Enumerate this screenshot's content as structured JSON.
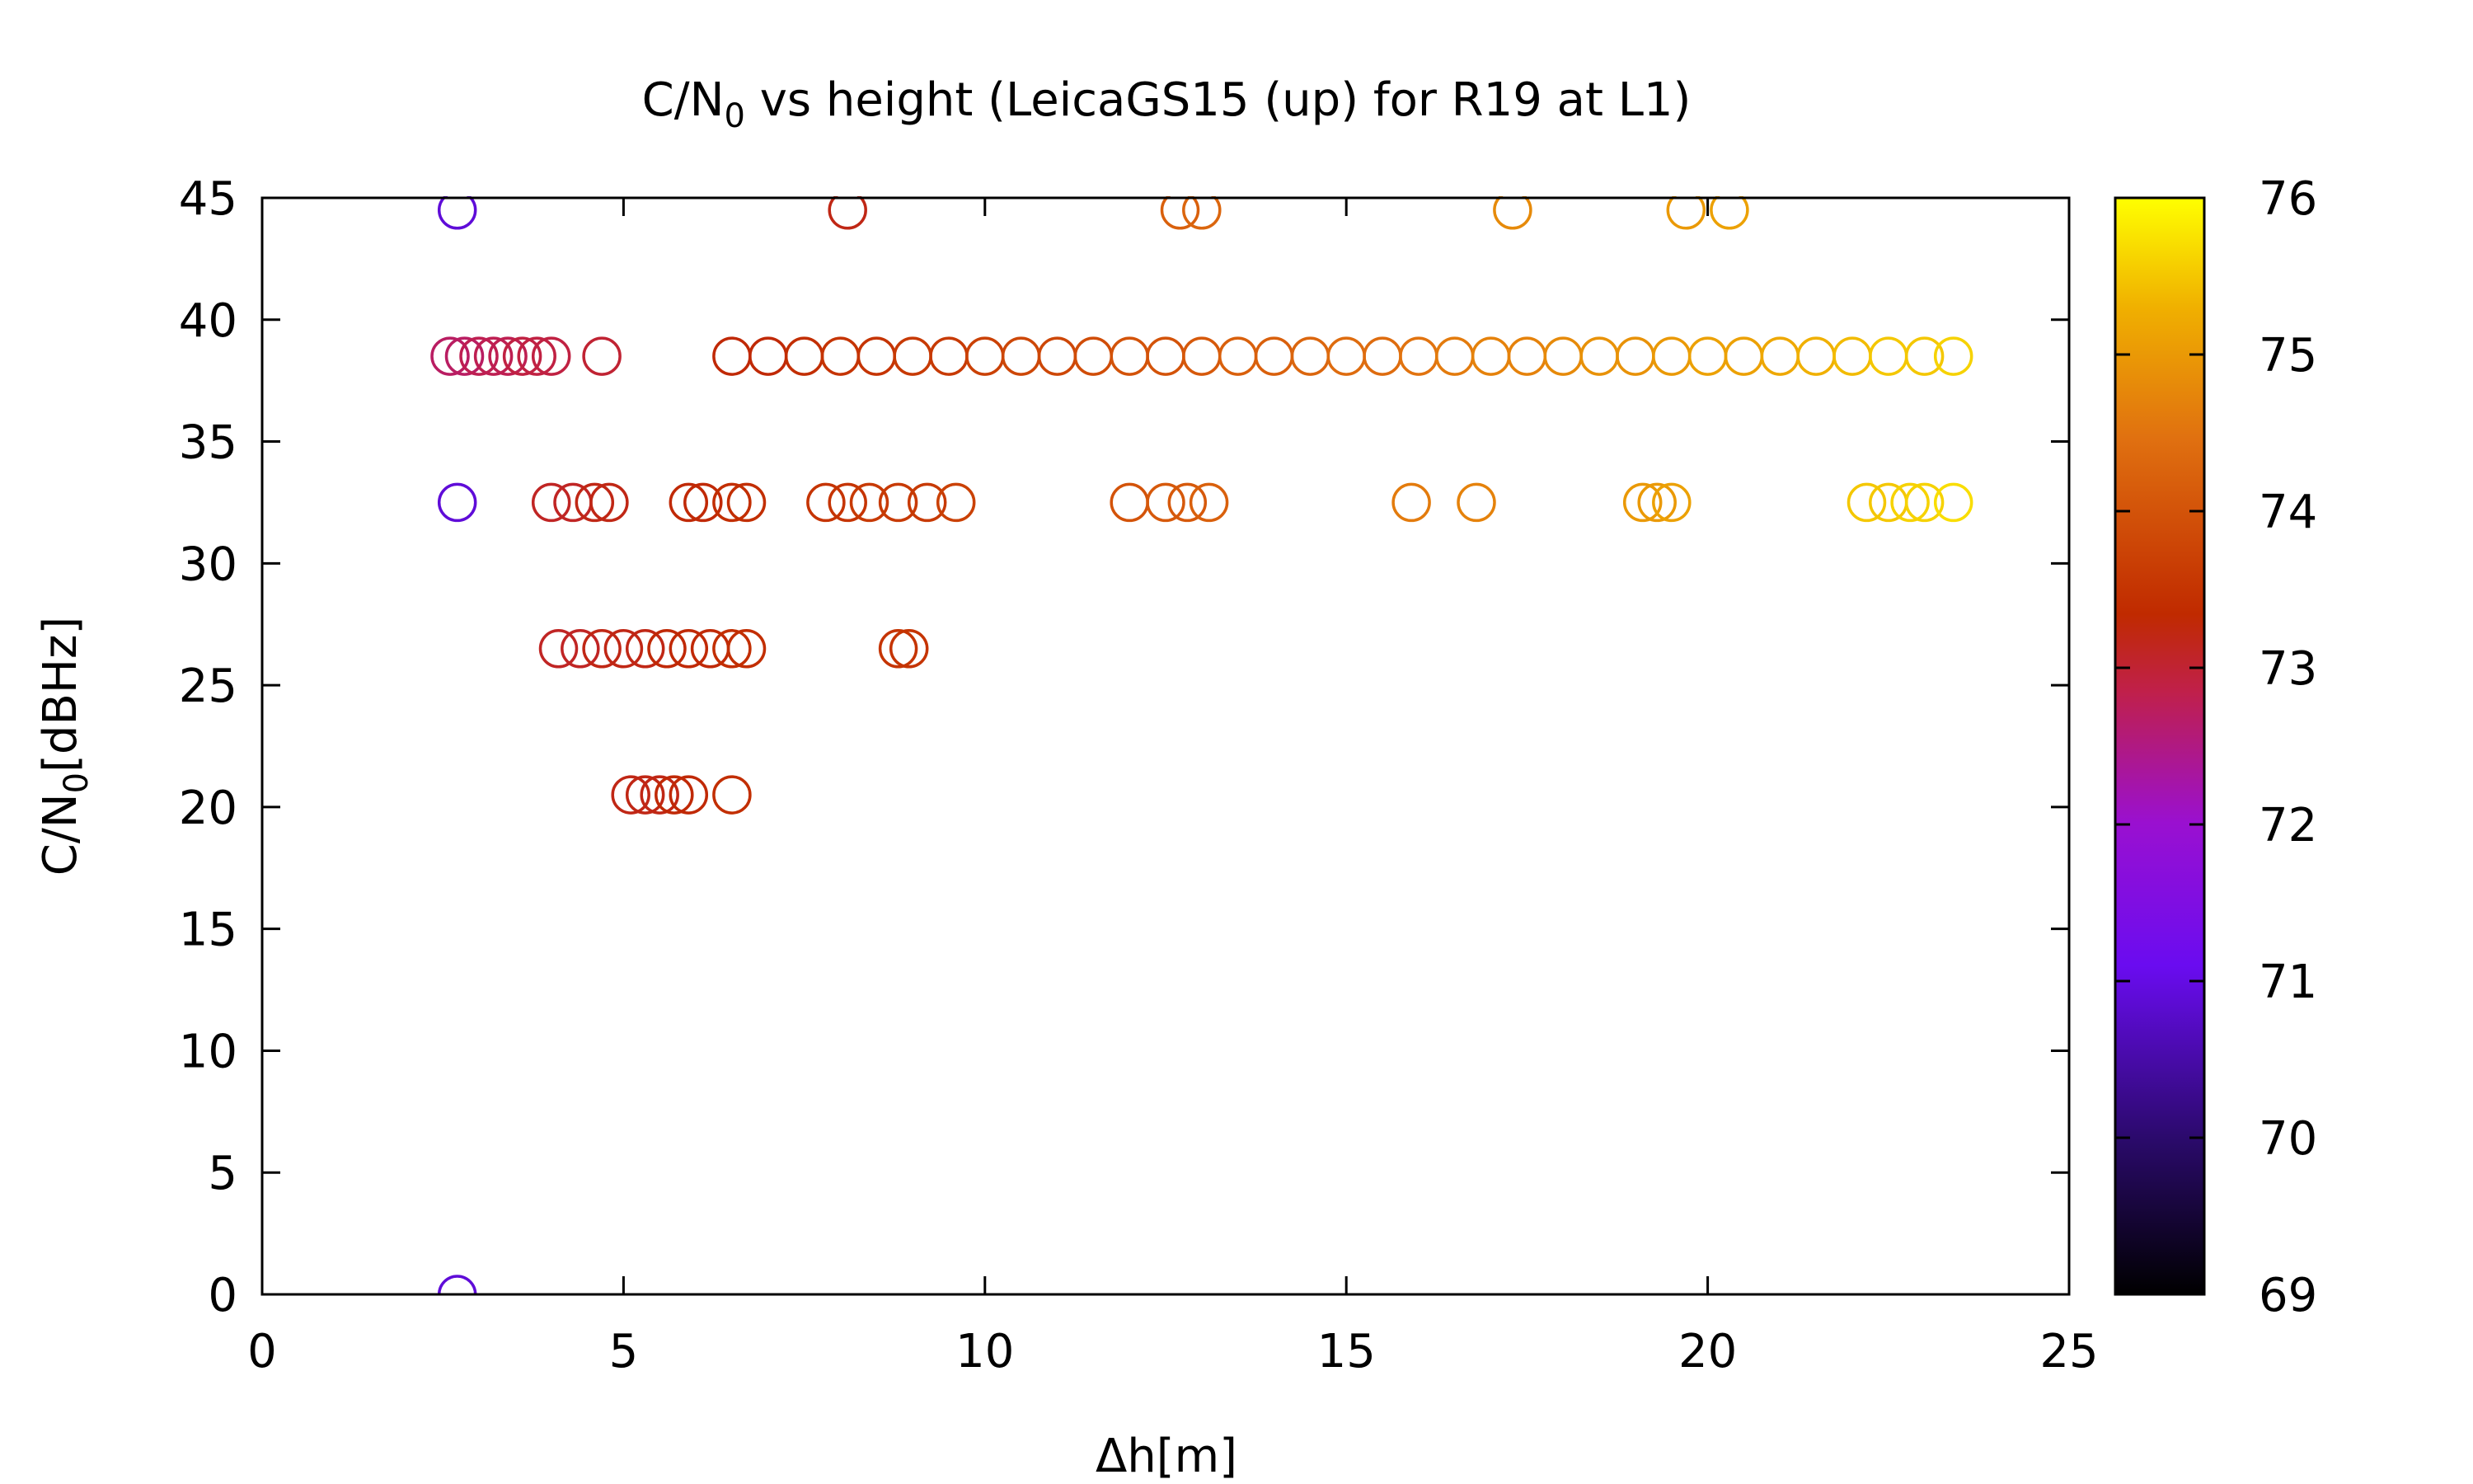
{
  "chart_data": {
    "type": "scatter",
    "title": {
      "prefix": "C/N",
      "sub": "0",
      "suffix": " vs height (LeicaGS15 (up) for R19 at L1)"
    },
    "xlabel": "Δh[m]",
    "ylabel": {
      "prefix": "C/N",
      "sub": "0",
      "suffix": "[dBHz]"
    },
    "xlim": [
      0,
      25
    ],
    "ylim": [
      0,
      45
    ],
    "xticks": [
      "0",
      "5",
      "10",
      "15",
      "20",
      "25"
    ],
    "yticks": [
      "0",
      "5",
      "10",
      "15",
      "20",
      "25",
      "30",
      "35",
      "40",
      "45"
    ],
    "marker": "open-circle",
    "colorbar": {
      "range": [
        69,
        76
      ],
      "ticks": [
        "69",
        "70",
        "71",
        "72",
        "73",
        "74",
        "75",
        "76"
      ],
      "colormap": "gnuplot-pm3d-black-purple-red-yellow"
    },
    "legend": "none",
    "grid": false,
    "points": [
      {
        "x": 2.7,
        "y": 44.5,
        "c": 70.9
      },
      {
        "x": 2.7,
        "y": 32.5,
        "c": 70.9
      },
      {
        "x": 2.7,
        "y": 0,
        "c": 70.9
      },
      {
        "x": 8.1,
        "y": 44.5,
        "c": 73.2
      },
      {
        "x": 12.7,
        "y": 44.5,
        "c": 74.2
      },
      {
        "x": 13.0,
        "y": 44.5,
        "c": 74.3
      },
      {
        "x": 17.3,
        "y": 44.5,
        "c": 74.8
      },
      {
        "x": 19.7,
        "y": 44.5,
        "c": 75.0
      },
      {
        "x": 20.3,
        "y": 44.5,
        "c": 75.1
      },
      {
        "x": 2.6,
        "y": 38.5,
        "c": 72.7
      },
      {
        "x": 2.8,
        "y": 38.5,
        "c": 72.7
      },
      {
        "x": 3.0,
        "y": 38.5,
        "c": 72.8
      },
      {
        "x": 3.2,
        "y": 38.5,
        "c": 72.8
      },
      {
        "x": 3.4,
        "y": 38.5,
        "c": 72.8
      },
      {
        "x": 3.6,
        "y": 38.5,
        "c": 72.9
      },
      {
        "x": 3.8,
        "y": 38.5,
        "c": 72.9
      },
      {
        "x": 4.0,
        "y": 38.5,
        "c": 72.9
      },
      {
        "x": 4.7,
        "y": 38.5,
        "c": 73.0
      },
      {
        "x": 6.5,
        "y": 38.5,
        "c": 73.3
      },
      {
        "x": 7.0,
        "y": 38.5,
        "c": 73.3
      },
      {
        "x": 7.5,
        "y": 38.5,
        "c": 73.4
      },
      {
        "x": 8.0,
        "y": 38.5,
        "c": 73.5
      },
      {
        "x": 8.5,
        "y": 38.5,
        "c": 73.5
      },
      {
        "x": 9.0,
        "y": 38.5,
        "c": 73.6
      },
      {
        "x": 9.5,
        "y": 38.5,
        "c": 73.6
      },
      {
        "x": 10.0,
        "y": 38.5,
        "c": 73.7
      },
      {
        "x": 10.5,
        "y": 38.5,
        "c": 73.8
      },
      {
        "x": 11.0,
        "y": 38.5,
        "c": 73.8
      },
      {
        "x": 11.5,
        "y": 38.5,
        "c": 73.9
      },
      {
        "x": 12.0,
        "y": 38.5,
        "c": 74.0
      },
      {
        "x": 12.5,
        "y": 38.5,
        "c": 74.0
      },
      {
        "x": 13.0,
        "y": 38.5,
        "c": 74.1
      },
      {
        "x": 13.5,
        "y": 38.5,
        "c": 74.2
      },
      {
        "x": 14.0,
        "y": 38.5,
        "c": 74.2
      },
      {
        "x": 14.5,
        "y": 38.5,
        "c": 74.3
      },
      {
        "x": 15.0,
        "y": 38.5,
        "c": 74.4
      },
      {
        "x": 15.5,
        "y": 38.5,
        "c": 74.4
      },
      {
        "x": 16.0,
        "y": 38.5,
        "c": 74.5
      },
      {
        "x": 16.5,
        "y": 38.5,
        "c": 74.6
      },
      {
        "x": 17.0,
        "y": 38.5,
        "c": 74.7
      },
      {
        "x": 17.5,
        "y": 38.5,
        "c": 74.7
      },
      {
        "x": 18.0,
        "y": 38.5,
        "c": 74.8
      },
      {
        "x": 18.5,
        "y": 38.5,
        "c": 74.9
      },
      {
        "x": 19.0,
        "y": 38.5,
        "c": 74.9
      },
      {
        "x": 19.5,
        "y": 38.5,
        "c": 75.0
      },
      {
        "x": 20.0,
        "y": 38.5,
        "c": 75.1
      },
      {
        "x": 20.5,
        "y": 38.5,
        "c": 75.1
      },
      {
        "x": 21.0,
        "y": 38.5,
        "c": 75.2
      },
      {
        "x": 21.5,
        "y": 38.5,
        "c": 75.3
      },
      {
        "x": 22.0,
        "y": 38.5,
        "c": 75.4
      },
      {
        "x": 22.5,
        "y": 38.5,
        "c": 75.5
      },
      {
        "x": 23.0,
        "y": 38.5,
        "c": 75.5
      },
      {
        "x": 23.4,
        "y": 38.5,
        "c": 75.6
      },
      {
        "x": 4.0,
        "y": 32.5,
        "c": 73.1
      },
      {
        "x": 4.3,
        "y": 32.5,
        "c": 73.1
      },
      {
        "x": 4.6,
        "y": 32.5,
        "c": 73.2
      },
      {
        "x": 4.8,
        "y": 32.5,
        "c": 73.2
      },
      {
        "x": 5.9,
        "y": 32.5,
        "c": 73.3
      },
      {
        "x": 6.1,
        "y": 32.5,
        "c": 73.3
      },
      {
        "x": 6.5,
        "y": 32.5,
        "c": 73.4
      },
      {
        "x": 6.7,
        "y": 32.5,
        "c": 73.4
      },
      {
        "x": 7.8,
        "y": 32.5,
        "c": 73.5
      },
      {
        "x": 8.1,
        "y": 32.5,
        "c": 73.5
      },
      {
        "x": 8.4,
        "y": 32.5,
        "c": 73.6
      },
      {
        "x": 8.8,
        "y": 32.5,
        "c": 73.6
      },
      {
        "x": 9.2,
        "y": 32.5,
        "c": 73.6
      },
      {
        "x": 9.6,
        "y": 32.5,
        "c": 73.7
      },
      {
        "x": 12.0,
        "y": 32.5,
        "c": 74.0
      },
      {
        "x": 12.5,
        "y": 32.5,
        "c": 74.1
      },
      {
        "x": 12.8,
        "y": 32.5,
        "c": 74.1
      },
      {
        "x": 13.1,
        "y": 32.5,
        "c": 74.2
      },
      {
        "x": 15.9,
        "y": 32.5,
        "c": 74.6
      },
      {
        "x": 16.8,
        "y": 32.5,
        "c": 74.7
      },
      {
        "x": 19.1,
        "y": 32.5,
        "c": 75.0
      },
      {
        "x": 19.3,
        "y": 32.5,
        "c": 75.0
      },
      {
        "x": 19.5,
        "y": 32.5,
        "c": 75.1
      },
      {
        "x": 22.2,
        "y": 32.5,
        "c": 75.5
      },
      {
        "x": 22.5,
        "y": 32.5,
        "c": 75.5
      },
      {
        "x": 22.8,
        "y": 32.5,
        "c": 75.6
      },
      {
        "x": 23.0,
        "y": 32.5,
        "c": 75.6
      },
      {
        "x": 23.4,
        "y": 32.5,
        "c": 75.7
      },
      {
        "x": 4.1,
        "y": 26.5,
        "c": 73.1
      },
      {
        "x": 4.4,
        "y": 26.5,
        "c": 73.1
      },
      {
        "x": 4.7,
        "y": 26.5,
        "c": 73.2
      },
      {
        "x": 5.0,
        "y": 26.5,
        "c": 73.2
      },
      {
        "x": 5.3,
        "y": 26.5,
        "c": 73.2
      },
      {
        "x": 5.6,
        "y": 26.5,
        "c": 73.3
      },
      {
        "x": 5.9,
        "y": 26.5,
        "c": 73.3
      },
      {
        "x": 6.2,
        "y": 26.5,
        "c": 73.3
      },
      {
        "x": 6.5,
        "y": 26.5,
        "c": 73.4
      },
      {
        "x": 6.7,
        "y": 26.5,
        "c": 73.4
      },
      {
        "x": 8.8,
        "y": 26.5,
        "c": 73.5
      },
      {
        "x": 8.95,
        "y": 26.5,
        "c": 73.5
      },
      {
        "x": 5.1,
        "y": 20.5,
        "c": 73.2
      },
      {
        "x": 5.3,
        "y": 20.5,
        "c": 73.2
      },
      {
        "x": 5.5,
        "y": 20.5,
        "c": 73.2
      },
      {
        "x": 5.7,
        "y": 20.5,
        "c": 73.3
      },
      {
        "x": 5.9,
        "y": 20.5,
        "c": 73.3
      },
      {
        "x": 6.5,
        "y": 20.5,
        "c": 73.4
      }
    ]
  }
}
